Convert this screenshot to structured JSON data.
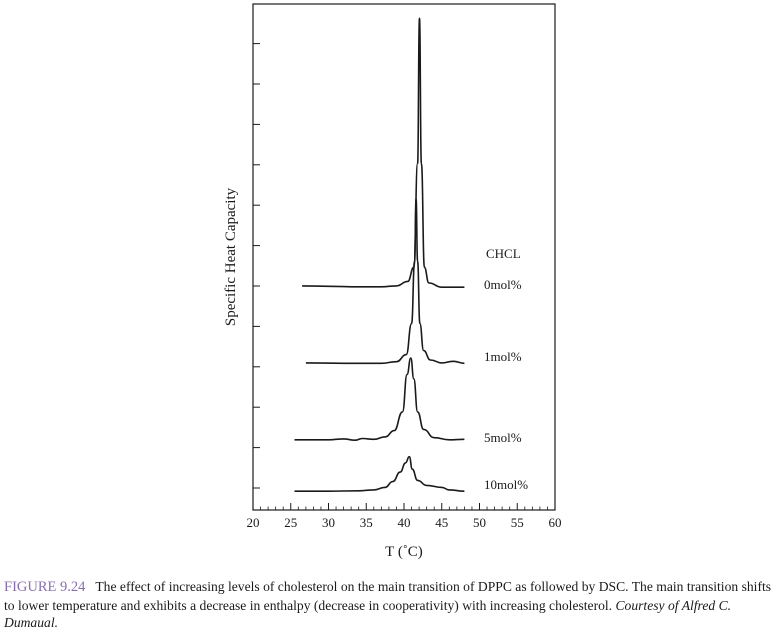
{
  "chart_data": {
    "type": "line",
    "title": "",
    "xlabel": "T (˚C)",
    "ylabel": "Specific Heat Capacity",
    "xlim": [
      20,
      60
    ],
    "xticks": [
      20,
      25,
      30,
      35,
      40,
      45,
      50,
      55,
      60
    ],
    "y_tick_count": 12,
    "y_tick_labels": false,
    "grid": false,
    "legend_title": "CHCL",
    "legend_placement": "right of curves",
    "line_color": "#1a1a1a",
    "series": [
      {
        "name": "0mol%",
        "points": [
          [
            26.5,
            0.5
          ],
          [
            30,
            0.4
          ],
          [
            34,
            0.3
          ],
          [
            37,
            0.3
          ],
          [
            39,
            0.5
          ],
          [
            40.5,
            1.6
          ],
          [
            41.3,
            5
          ],
          [
            41.8,
            30
          ],
          [
            42.05,
            65
          ],
          [
            42.3,
            30
          ],
          [
            42.7,
            5
          ],
          [
            43.3,
            1.2
          ],
          [
            45,
            0.2
          ],
          [
            48,
            0.2
          ]
        ]
      },
      {
        "name": "1mol%",
        "points": [
          [
            27,
            0.5
          ],
          [
            32,
            0.4
          ],
          [
            37,
            0.4
          ],
          [
            39,
            0.8
          ],
          [
            40.3,
            2.5
          ],
          [
            41,
            10
          ],
          [
            41.4,
            25
          ],
          [
            41.6,
            40
          ],
          [
            41.8,
            25
          ],
          [
            42.1,
            10
          ],
          [
            42.6,
            3.5
          ],
          [
            43.5,
            1.2
          ],
          [
            45,
            0.5
          ],
          [
            46.5,
            0.9
          ],
          [
            48,
            0.4
          ]
        ]
      },
      {
        "name": "5mol%",
        "points": [
          [
            25.5,
            0.3
          ],
          [
            30,
            0.3
          ],
          [
            32,
            0.5
          ],
          [
            33.5,
            0.2
          ],
          [
            34.5,
            0.6
          ],
          [
            36,
            0.4
          ],
          [
            37.5,
            1
          ],
          [
            38.7,
            2.5
          ],
          [
            39.8,
            7
          ],
          [
            40.4,
            16
          ],
          [
            40.9,
            20
          ],
          [
            41.3,
            15
          ],
          [
            41.8,
            7
          ],
          [
            42.6,
            2.8
          ],
          [
            44,
            0.8
          ],
          [
            46,
            0.3
          ],
          [
            48,
            0.4
          ]
        ]
      },
      {
        "name": "10mol%",
        "points": [
          [
            25.5,
            0.2
          ],
          [
            30,
            0.2
          ],
          [
            34,
            0.3
          ],
          [
            36,
            0.5
          ],
          [
            37.5,
            1.1
          ],
          [
            38.5,
            2.5
          ],
          [
            39.5,
            4.8
          ],
          [
            40.2,
            7
          ],
          [
            40.7,
            8.5
          ],
          [
            41.1,
            5.5
          ],
          [
            41.8,
            2.8
          ],
          [
            43,
            1.6
          ],
          [
            45,
            1.1
          ],
          [
            46,
            0.5
          ],
          [
            48,
            0.2
          ]
        ]
      }
    ]
  },
  "caption": {
    "figure_label": "FIGURE 9.24",
    "text": "The effect of increasing levels of cholesterol on the main transition of DPPC as followed by DSC. The main transition shifts to lower temperature and exhibits a decrease in enthalpy (decrease in cooperativity) with increasing cholesterol.",
    "credit": "Courtesy of Alfred C. Dumaual."
  }
}
